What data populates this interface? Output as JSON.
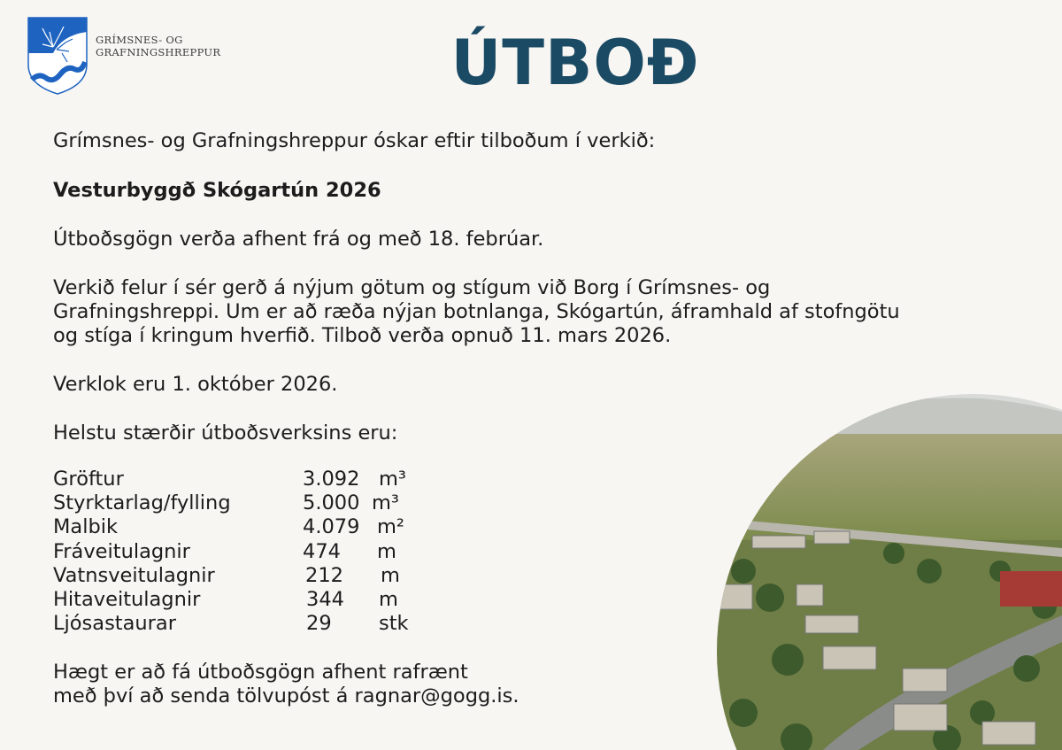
{
  "header": {
    "logo_text_line1": "GRÍMSNES- OG",
    "logo_text_line2": "GRAFNINGSHREPPUR",
    "title": "ÚTBOÐ"
  },
  "body": {
    "intro": "Grímsnes- og Grafningshreppur óskar eftir tilboðum í verkið:",
    "project": "Vesturbyggð Skógartún 2026",
    "documents": "Útboðsgögn verða afhent frá og með 18. febrúar.",
    "description_line1": "Verkið felur í sér gerð á nýjum götum og stígum við Borg í Grímsnes- og",
    "description_line2": "Grafningshreppi. Um er að ræða nýjan botnlanga, Skógartún, áframhald af stofngötu",
    "description_line3": "og stíga í kringum hverfið. Tilboð verða opnuð 11. mars 2026.",
    "completion": "Verklok eru 1. október 2026.",
    "quantities_heading": "Helstu stærðir útboðsverksins eru:",
    "quantities": [
      {
        "item": "Gröftur",
        "amount": "3.092",
        "unit": "m³"
      },
      {
        "item": "Styrktarlag/fylling",
        "amount": "5.000",
        "unit": "m³"
      },
      {
        "item": "Malbik",
        "amount": "4.079",
        "unit": "m²"
      },
      {
        "item": "Fráveitulagnir",
        "amount": "474",
        "unit": "m"
      },
      {
        "item": "Vatnsveitulagnir",
        "amount": "212",
        "unit": "m"
      },
      {
        "item": "Hitaveitulagnir",
        "amount": "344",
        "unit": "m"
      },
      {
        "item": "Ljósastaurar",
        "amount": "29",
        "unit": "stk"
      }
    ],
    "contact_line1": "Hægt er að fá útboðsgögn afhent rafrænt",
    "contact_line2": "með því að senda tölvupóst á ragnar@gogg.is."
  },
  "colors": {
    "title": "#1b4a64",
    "logo_blue": "#1e63c0",
    "background": "#f7f6f3"
  }
}
